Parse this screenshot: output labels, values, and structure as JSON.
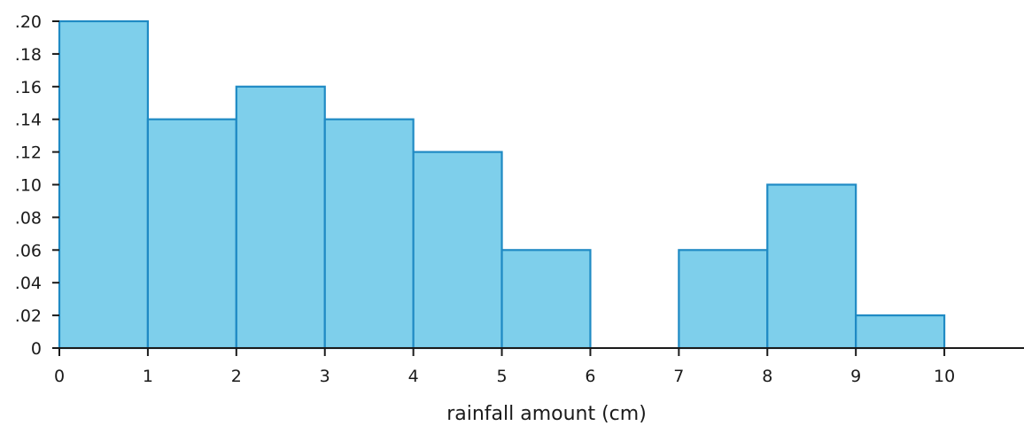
{
  "chart_data": {
    "type": "bar",
    "title": "",
    "xlabel": "rainfall amount (cm)",
    "ylabel": "",
    "bins": [
      {
        "start": 0,
        "end": 1,
        "value": 0.2
      },
      {
        "start": 1,
        "end": 2,
        "value": 0.14
      },
      {
        "start": 2,
        "end": 3,
        "value": 0.16
      },
      {
        "start": 3,
        "end": 4,
        "value": 0.14
      },
      {
        "start": 4,
        "end": 5,
        "value": 0.12
      },
      {
        "start": 5,
        "end": 6,
        "value": 0.06
      },
      {
        "start": 6,
        "end": 7,
        "value": 0
      },
      {
        "start": 7,
        "end": 8,
        "value": 0.06
      },
      {
        "start": 8,
        "end": 9,
        "value": 0.1
      },
      {
        "start": 9,
        "end": 10,
        "value": 0.02
      }
    ],
    "xticks": [
      0,
      1,
      2,
      3,
      4,
      5,
      6,
      7,
      8,
      9,
      10
    ],
    "xtick_labels": [
      "0",
      "1",
      "2",
      "3",
      "4",
      "5",
      "6",
      "7",
      "8",
      "9",
      "10"
    ],
    "yticks": [
      0,
      0.02,
      0.04,
      0.06,
      0.08,
      0.1,
      0.12,
      0.14,
      0.16,
      0.18,
      0.2
    ],
    "ytick_labels": [
      "0",
      ".02",
      ".04",
      ".06",
      ".08",
      ".10",
      ".12",
      ".14",
      ".16",
      ".18",
      ".20"
    ],
    "xlim": [
      0,
      10.9
    ],
    "ylim": [
      0,
      0.2
    ],
    "grid": false,
    "legend": "none",
    "colors": {
      "bar_fill": "#7ecfeb",
      "bar_stroke": "#1f8ac4",
      "axis": "#1a1a1a"
    }
  }
}
